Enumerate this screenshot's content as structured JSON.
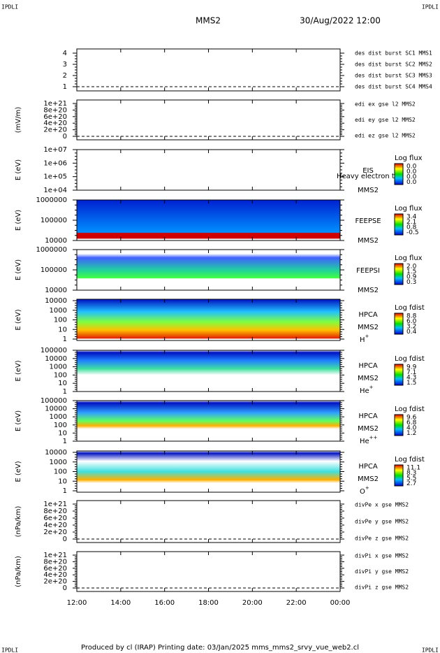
{
  "header": {
    "corner_left": "IPDLI",
    "corner_right": "IPDLI",
    "mission": "MMS2",
    "date": "30/Aug/2022 12:00"
  },
  "panels": [
    {
      "yticks": [
        "4",
        "3",
        "2",
        "1"
      ],
      "legend": [
        {
          "text": "des dist burst SC1 MMS1",
          "color": "#0000cc"
        },
        {
          "text": "des dist burst SC2 MMS2",
          "color": "#cc00cc"
        },
        {
          "text": "des dist burst SC3 MMS3",
          "color": "#cc0000"
        },
        {
          "text": "des dist burst SC4 MMS4",
          "color": "#00bb00"
        }
      ]
    },
    {
      "ylabel": "(mV/m)",
      "yticks": [
        "1e+21",
        "8e+20",
        "6e+20",
        "4e+20",
        "2e+20",
        "0"
      ],
      "legend": [
        {
          "text": "edi ex gse l2 MMS2",
          "color": "#cc0000"
        },
        {
          "text": "edi ey gse l2 MMS2",
          "color": "#00bb00"
        },
        {
          "text": "edi ez gse l2 MMS2",
          "color": "#0000cc"
        }
      ]
    },
    {
      "ylabel": "E (eV)",
      "yticks": [
        "1e+07",
        "1e+06",
        "1e+05",
        "1e+04"
      ],
      "side": [
        "EIS",
        "MMS2"
      ],
      "note": "Heavy electron to",
      "colorbar": {
        "title": "Log flux",
        "ticks": [
          "0.0",
          "0.0",
          "0.0",
          "0.0"
        ]
      }
    },
    {
      "ylabel": "E (eV)",
      "yticks": [
        "1000000",
        "100000",
        "10000"
      ],
      "side": [
        "FEEPSE",
        "MMS2"
      ],
      "colorbar": {
        "title": "Log flux",
        "ticks": [
          "3.4",
          "2.1",
          "0.8",
          "-0.5"
        ]
      }
    },
    {
      "ylabel": "E (eV)",
      "yticks": [
        "1000000",
        "100000",
        "10000"
      ],
      "side": [
        "FEEPSI",
        "MMS2"
      ],
      "colorbar": {
        "title": "Log flux",
        "ticks": [
          "2.0",
          "1.5",
          "0.9",
          "0.3"
        ]
      }
    },
    {
      "ylabel": "E (eV)",
      "yticks": [
        "10000",
        "1000",
        "100",
        "10",
        "1"
      ],
      "side": [
        "HPCA",
        "MMS2"
      ],
      "species": {
        "base": "H",
        "sup": "+"
      },
      "colorbar": {
        "title": "Log fdist",
        "ticks": [
          "8.8",
          "6.0",
          "3.2",
          "0.4"
        ]
      }
    },
    {
      "ylabel": "E (eV)",
      "yticks": [
        "100000",
        "10000",
        "1000",
        "100",
        "10",
        "1"
      ],
      "side": [
        "HPCA",
        "MMS2"
      ],
      "species": {
        "base": "He",
        "sup": "+"
      },
      "colorbar": {
        "title": "Log fdist",
        "ticks": [
          "9.9",
          "7.1",
          "4.3",
          "1.5"
        ]
      }
    },
    {
      "ylabel": "E (eV)",
      "yticks": [
        "100000",
        "10000",
        "1000",
        "100",
        "10",
        "1"
      ],
      "side": [
        "HPCA",
        "MMS2"
      ],
      "species": {
        "base": "He",
        "sup": "++"
      },
      "colorbar": {
        "title": "Log fdist",
        "ticks": [
          "9.6",
          "6.8",
          "4.0",
          "1.2"
        ]
      }
    },
    {
      "ylabel": "E (eV)",
      "yticks": [
        "10000",
        "1000",
        "100",
        "10",
        "1"
      ],
      "side": [
        "HPCA",
        "MMS2"
      ],
      "species": {
        "base": "O",
        "sup": "+"
      },
      "colorbar": {
        "title": "Log fdist",
        "ticks": [
          "11.1",
          "8.3",
          "5.5",
          "2.7"
        ]
      }
    },
    {
      "ylabel": "(nPa/km)",
      "yticks": [
        "1e+21",
        "8e+20",
        "6e+20",
        "4e+20",
        "2e+20",
        "0"
      ],
      "legend": [
        {
          "text": "divPe x gse MMS2",
          "color": "#cc0000"
        },
        {
          "text": "divPe y gse MMS2",
          "color": "#00bb00"
        },
        {
          "text": "divPe z gse MMS2",
          "color": "#0000cc"
        }
      ]
    },
    {
      "ylabel": "(nPa/km)",
      "yticks": [
        "1e+21",
        "8e+20",
        "6e+20",
        "4e+20",
        "2e+20",
        "0"
      ],
      "legend": [
        {
          "text": "divPi x gse MMS2",
          "color": "#cc0000"
        },
        {
          "text": "divPi y gse MMS2",
          "color": "#00bb00"
        },
        {
          "text": "divPi z gse MMS2",
          "color": "#0000cc"
        }
      ]
    }
  ],
  "xticks": [
    "12:00",
    "14:00",
    "16:00",
    "18:00",
    "20:00",
    "22:00",
    "00:00"
  ],
  "footer": {
    "text": "Produced by cl (IRAP)   Printing date: 03/Jan/2025   mms_mms2_srvy_vue_web2.cl",
    "corner_left": "IPDLI",
    "corner_right": "IPDLI"
  }
}
